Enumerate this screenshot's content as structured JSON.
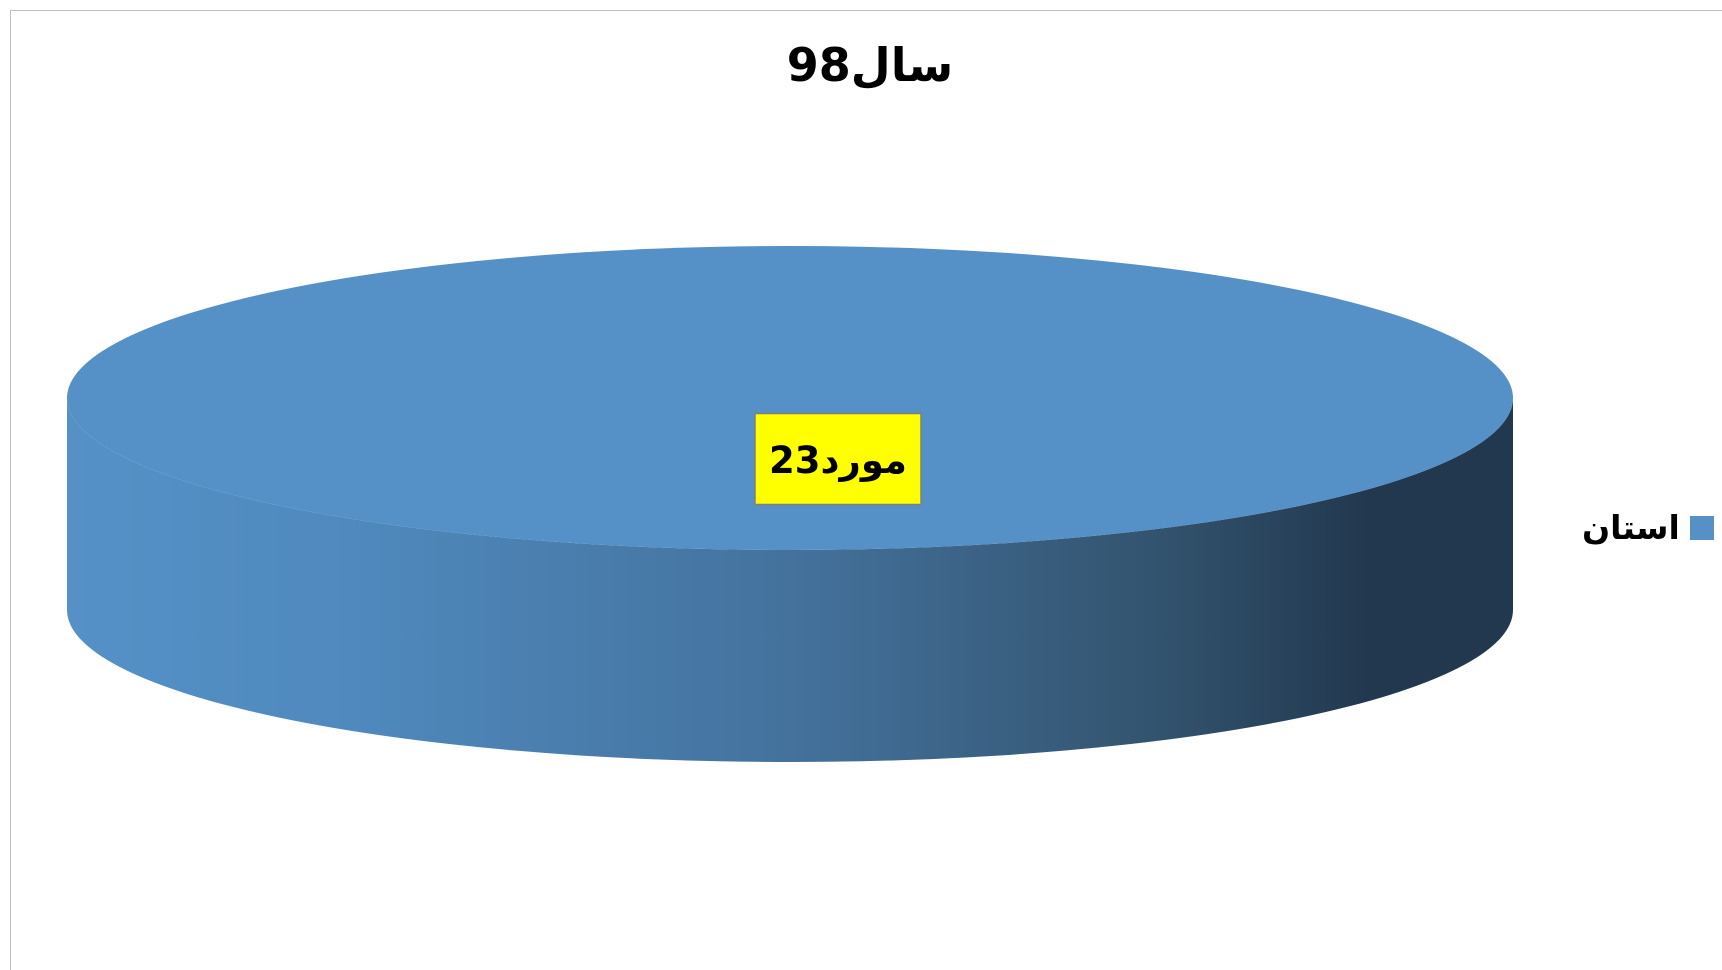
{
  "chart_data": {
    "type": "pie",
    "title": "سال98",
    "categories": [
      "استان"
    ],
    "values": [
      23
    ],
    "data_labels": [
      "مورد23"
    ],
    "colors": {
      "slice": "#5591c7",
      "slice_dark": "#22384f",
      "label_background": "#ffff00"
    },
    "legend": {
      "position": "right",
      "entries": [
        "استان"
      ]
    }
  }
}
